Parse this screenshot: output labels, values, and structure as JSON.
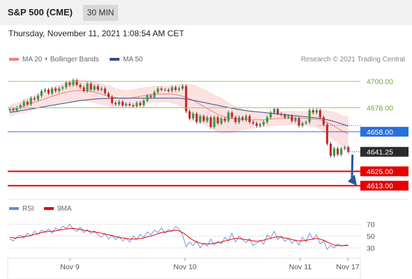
{
  "header": {
    "title": "S&P 500 (CME)",
    "interval": "30 MIN"
  },
  "timestamp": "Thursday, November 11, 2021 1:08:54 AM CET",
  "credit": "Research © 2021 Trading Central",
  "colors": {
    "ma20": "#f08080",
    "ma50": "#2b4f8f",
    "bands": "#fbd9d9",
    "bullish": "#2f9e44",
    "bearish": "#c92a2a",
    "resistance": "#99cc66",
    "pivot": "#2b6fdc",
    "support": "#e60000",
    "rsi": "#6a8cd8",
    "rsi_ma": "#e60000",
    "arrow": "#2b5797"
  },
  "chart_data": [
    {
      "type": "line",
      "title": "",
      "legend": [
        {
          "name": "MA 20 + Bollinger Bands",
          "color": "#f08080"
        },
        {
          "name": "MA 50",
          "color": "#2b4f8f"
        }
      ],
      "x_ticks": [
        "Nov 9",
        "Nov 10",
        "Nov 11",
        "Nov 17"
      ],
      "ylim": [
        4605,
        4712
      ],
      "levels": [
        {
          "value": 4700.0,
          "label": "4700.00",
          "kind": "resistance"
        },
        {
          "value": 4678.0,
          "label": "4678.00",
          "kind": "resistance"
        },
        {
          "value": 4658.0,
          "label": "4658.00",
          "kind": "pivot"
        },
        {
          "value": 4625.0,
          "label": "4625.00",
          "kind": "support"
        },
        {
          "value": 4613.0,
          "label": "4613.00",
          "kind": "support"
        }
      ],
      "last_price": {
        "value": 4641.25,
        "label": "4641.25"
      },
      "close": [
        4677,
        4676,
        4678,
        4680,
        4683,
        4681,
        4686,
        4685,
        4688,
        4692,
        4693,
        4690,
        4694,
        4692,
        4694,
        4695,
        4699,
        4697,
        4701,
        4697,
        4695,
        4692,
        4698,
        4693,
        4696,
        4693,
        4694,
        4690,
        4687,
        4682,
        4681,
        4683,
        4680,
        4681,
        4680,
        4679,
        4682,
        4680,
        4684,
        4688,
        4687,
        4691,
        4694,
        4693,
        4693,
        4692,
        4695,
        4693,
        4694,
        4696,
        4675,
        4669,
        4673,
        4666,
        4671,
        4667,
        4670,
        4662,
        4670,
        4665,
        4669,
        4667,
        4674,
        4670,
        4666,
        4670,
        4668,
        4671,
        4666,
        4665,
        4663,
        4664,
        4666,
        4670,
        4674,
        4677,
        4673,
        4672,
        4670,
        4671,
        4667,
        4669,
        4663,
        4665,
        4666,
        4676,
        4674,
        4676,
        4670,
        4664,
        4648,
        4638,
        4644,
        4639,
        4644,
        4645,
        4641.25
      ],
      "ma20": [
        4675.0,
        4676.5,
        4677.5,
        4678.5,
        4679.5,
        4680.5,
        4681.5,
        4682.5,
        4683.5,
        4684.5,
        4685.5,
        4686.6,
        4687.5,
        4688.5,
        4689.4,
        4690.2,
        4690.9,
        4691.5,
        4692.0,
        4692.3,
        4692.4,
        4692.3,
        4692.0,
        4691.5,
        4690.9,
        4690.2,
        4689.5,
        4688.6,
        4687.8,
        4687.0,
        4686.4,
        4686.0,
        4685.8,
        4685.8,
        4686.0,
        4686.5,
        4687.0,
        4687.5,
        4688.0,
        4688.4,
        4688.8,
        4689.1,
        4689.3,
        4689.4,
        4689.5,
        4689.4,
        4689.3,
        4689.0,
        4688.5,
        4687.7,
        4686.7,
        4685.5,
        4684.1,
        4682.5,
        4680.8,
        4679.0,
        4677.3,
        4675.6,
        4674.0,
        4672.6,
        4671.4,
        4670.4,
        4669.6,
        4669.0,
        4668.6,
        4668.3,
        4668.1,
        4668.0,
        4667.9,
        4667.9,
        4667.9,
        4667.9,
        4668.0,
        4668.2,
        4668.5,
        4668.8,
        4669.0,
        4669.2,
        4669.3,
        4669.4,
        4669.4,
        4669.4,
        4669.3,
        4669.2,
        4669.0,
        4668.8,
        4668.6,
        4668.3,
        4667.8,
        4667.0,
        4665.8,
        4664.3,
        4662.6,
        4660.8,
        4659.0,
        4657.5,
        4656.0
      ],
      "band_width": [
        5,
        5,
        5,
        5,
        6,
        6,
        6,
        6,
        7,
        7,
        7,
        7,
        7,
        8,
        8,
        8,
        8,
        9,
        9,
        9,
        9,
        9,
        9,
        9,
        9,
        9,
        9,
        9,
        9,
        9,
        8,
        8,
        7,
        7,
        7,
        7,
        7,
        7,
        7,
        7,
        7,
        7,
        7,
        7,
        7,
        7,
        8,
        8,
        9,
        10,
        11,
        12,
        13,
        14,
        14,
        15,
        15,
        15,
        15,
        15,
        15,
        14,
        13,
        12,
        11,
        10,
        9,
        8,
        8,
        7,
        7,
        6,
        6,
        6,
        6,
        6,
        6,
        6,
        6,
        6,
        6,
        6,
        6,
        6,
        6,
        6,
        7,
        7,
        8,
        9,
        10,
        11,
        12,
        13,
        13,
        14,
        15
      ],
      "ma50": [
        4674.0,
        4674.5,
        4675.0,
        4675.5,
        4676.0,
        4676.5,
        4677.0,
        4677.5,
        4678.0,
        4678.5,
        4679.0,
        4679.5,
        4680.0,
        4680.5,
        4681.0,
        4681.5,
        4682.0,
        4682.5,
        4683.0,
        4683.5,
        4684.0,
        4684.3,
        4684.6,
        4684.9,
        4685.2,
        4685.5,
        4685.6,
        4685.7,
        4685.8,
        4685.9,
        4686.0,
        4686.0,
        4686.0,
        4686.0,
        4686.0,
        4686.0,
        4686.0,
        4686.0,
        4686.0,
        4686.0,
        4686.0,
        4686.0,
        4686.0,
        4686.0,
        4686.0,
        4686.0,
        4686.0,
        4686.0,
        4685.9,
        4685.7,
        4685.3,
        4684.8,
        4684.2,
        4683.6,
        4683.0,
        4682.4,
        4681.8,
        4681.2,
        4680.6,
        4680.0,
        4679.4,
        4678.8,
        4678.2,
        4677.6,
        4677.0,
        4676.5,
        4676.0,
        4675.6,
        4675.2,
        4674.9,
        4674.6,
        4674.3,
        4674.0,
        4673.7,
        4673.4,
        4673.1,
        4672.8,
        4672.5,
        4672.2,
        4671.9,
        4671.6,
        4671.3,
        4671.0,
        4670.7,
        4670.4,
        4670.1,
        4669.8,
        4669.5,
        4669.1,
        4668.6,
        4668.0,
        4667.3,
        4666.5,
        4665.6,
        4664.6,
        4663.7,
        4662.8
      ],
      "forecast": [
        4641.25,
        4613.0
      ]
    },
    {
      "type": "line",
      "legend": [
        {
          "name": "RSI",
          "color": "#6a8cd8"
        },
        {
          "name": "9MA",
          "color": "#e60000"
        }
      ],
      "ylim": [
        20,
        80
      ],
      "y_ticks": [
        70,
        50,
        30
      ],
      "rsi": [
        45,
        42,
        48,
        52,
        47,
        55,
        50,
        58,
        53,
        60,
        57,
        62,
        55,
        64,
        60,
        67,
        63,
        70,
        62,
        58,
        65,
        56,
        61,
        54,
        59,
        52,
        48,
        55,
        45,
        51,
        44,
        49,
        42,
        47,
        40,
        50,
        45,
        53,
        48,
        57,
        52,
        60,
        56,
        64,
        55,
        61,
        58,
        66,
        62,
        52,
        32,
        40,
        34,
        42,
        30,
        38,
        33,
        45,
        35,
        41,
        37,
        48,
        42,
        55,
        40,
        50,
        44,
        39,
        46,
        34,
        38,
        43,
        36,
        52,
        47,
        58,
        44,
        50,
        41,
        46,
        38,
        43,
        35,
        48,
        40,
        55,
        45,
        52,
        37,
        42,
        28,
        34,
        30,
        37,
        33,
        35,
        35
      ],
      "rsi_ma": [
        48,
        47,
        47,
        48,
        49,
        50,
        51,
        53,
        54,
        56,
        57,
        58,
        58,
        59,
        60,
        61,
        62,
        63,
        63,
        62,
        61,
        60,
        59,
        58,
        57,
        56,
        55,
        53,
        52,
        51,
        49,
        48,
        47,
        46,
        45,
        45,
        45,
        46,
        47,
        49,
        50,
        52,
        54,
        56,
        57,
        58,
        59,
        60,
        59,
        56,
        52,
        47,
        43,
        40,
        38,
        37,
        37,
        37,
        38,
        39,
        40,
        42,
        43,
        45,
        46,
        46,
        45,
        44,
        43,
        42,
        41,
        42,
        43,
        45,
        46,
        48,
        49,
        48,
        47,
        46,
        44,
        43,
        42,
        42,
        43,
        44,
        45,
        46,
        45,
        43,
        40,
        37,
        35,
        34,
        34,
        34,
        34
      ]
    }
  ]
}
